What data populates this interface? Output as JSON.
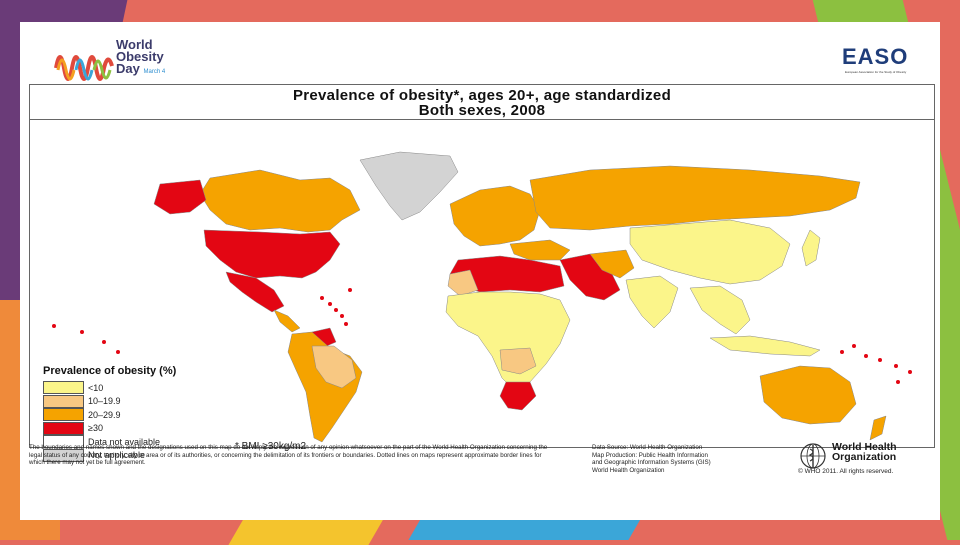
{
  "logos": {
    "world_obesity_day": [
      "World",
      "Obesity",
      "Day"
    ],
    "world_obesity_day_date": "March 4",
    "easo": "EASO",
    "easo_subtitle": "European Association for the Study of Obesity"
  },
  "map": {
    "title_line1": "Prevalence of obesity*, ages 20+, age standardized",
    "title_line2": "Both sexes, 2008",
    "legend_title": "Prevalence of obesity (%)",
    "legend": [
      {
        "label": "<10",
        "color": "#fbf58a"
      },
      {
        "label": "10–19.9",
        "color": "#f8c882"
      },
      {
        "label": "20–29.9",
        "color": "#f5a300"
      },
      {
        "label": "≥30",
        "color": "#e30613"
      },
      {
        "label": "Data not available",
        "color": "#ffffff"
      },
      {
        "label": "Not applicable",
        "color": "#d3d3d3"
      }
    ],
    "bmi_note": "* BMI ≥30kg/m2",
    "disclaimer": "The boundaries and names shown and the designations used on this map do not imply the expression of any opinion whatsoever on the part of the World Health Organization concerning the legal status of any country, territory, city or area or of its authorities, or concerning the delimitation of its frontiers or boundaries. Dotted lines on maps represent approximate border lines for which there may not yet be full agreement.",
    "source_lines": [
      "Data Source: World Health Organization",
      "Map Production: Public Health Information",
      "and Geographic Information Systems (GIS)",
      "World Health Organization"
    ],
    "who_name": [
      "World Health",
      "Organization"
    ],
    "copyright": "© WHO 2011. All rights reserved."
  },
  "colors": {
    "lt10": "#fbf58a",
    "r10_20": "#f8c882",
    "r20_30": "#f5a300",
    "ge30": "#e30613",
    "na": "#d3d3d3"
  }
}
